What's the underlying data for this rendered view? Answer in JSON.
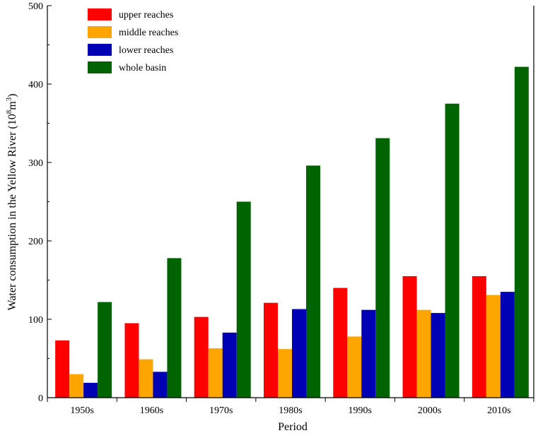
{
  "chart_data": {
    "type": "bar",
    "title": "",
    "xlabel": "Period",
    "ylabel": {
      "prefix": "Water consumption in the Yellow River (10",
      "exp1": "8",
      "mid": "m",
      "exp2": "3",
      "suffix": ")"
    },
    "categories": [
      "1950s",
      "1960s",
      "1970s",
      "1980s",
      "1990s",
      "2000s",
      "2010s"
    ],
    "ylim": [
      0,
      500
    ],
    "yticks": [
      0,
      100,
      200,
      300,
      400,
      500
    ],
    "grid": false,
    "legend_position": "top-left",
    "series": [
      {
        "name": "upper reaches",
        "color": "#ff0000",
        "values": [
          73,
          95,
          103,
          121,
          140,
          155,
          155
        ]
      },
      {
        "name": "middle reaches",
        "color": "#ffa500",
        "values": [
          30,
          49,
          63,
          62,
          78,
          112,
          131
        ]
      },
      {
        "name": "lower reaches",
        "color": "#0000b4",
        "values": [
          19,
          33,
          83,
          113,
          112,
          108,
          135
        ]
      },
      {
        "name": "whole basin",
        "color": "#006400",
        "values": [
          122,
          178,
          250,
          296,
          331,
          375,
          422
        ]
      }
    ]
  }
}
